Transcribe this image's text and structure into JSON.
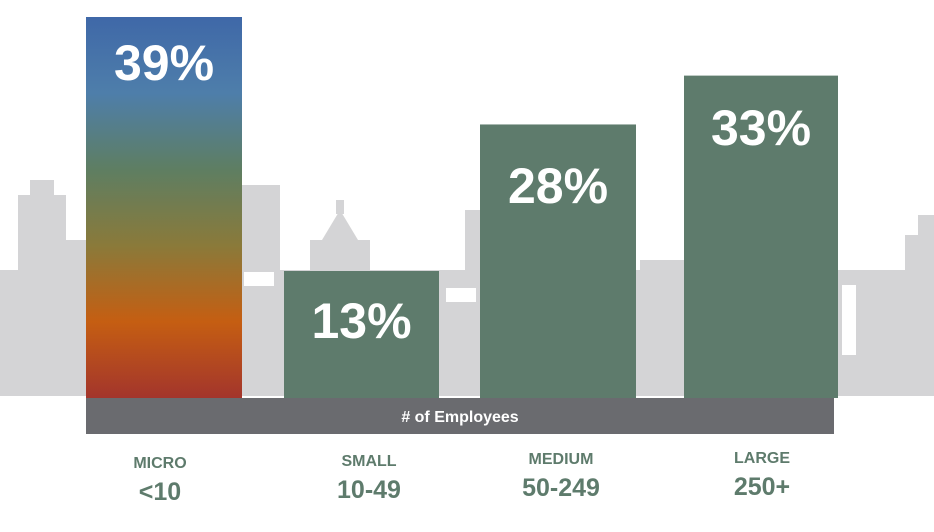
{
  "chart_data": {
    "type": "bar",
    "categories": [
      "MICRO",
      "SMALL",
      "MEDIUM",
      "LARGE"
    ],
    "category_ranges": [
      "<10",
      "10-49",
      "50-249",
      "250+"
    ],
    "values": [
      39,
      13,
      28,
      33
    ],
    "value_labels": [
      "39%",
      "13%",
      "28%",
      "33%"
    ],
    "xlabel": "# of Employees",
    "ylabel": "",
    "ylim": [
      0,
      39
    ],
    "grid": false,
    "legend": "none"
  },
  "colors": {
    "bar": "#5e7b6c",
    "micro_gradient": [
      "#3f68a8",
      "#4e7eaa",
      "#5e7e62",
      "#8a7a3a",
      "#c55e12",
      "#a3352c"
    ],
    "axis_band": "#6a6b6f",
    "category_text": "#5e7b6c",
    "skyline": "#d4d4d6"
  }
}
